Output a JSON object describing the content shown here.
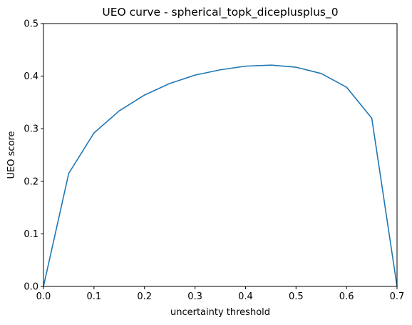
{
  "chart_data": {
    "type": "line",
    "title": "UEO curve - spherical_topk_diceplusplus_0",
    "xlabel": "uncertainty threshold",
    "ylabel": "UEO score",
    "xlim": [
      0.0,
      0.7
    ],
    "ylim": [
      0.0,
      0.5
    ],
    "grid": false,
    "xticks": [
      "0.0",
      "0.1",
      "0.2",
      "0.3",
      "0.4",
      "0.5",
      "0.6",
      "0.7"
    ],
    "yticks": [
      "0.0",
      "0.1",
      "0.2",
      "0.3",
      "0.4",
      "0.5"
    ],
    "series": [
      {
        "color": "#1f77b4",
        "x": [
          0.0,
          0.05,
          0.1,
          0.15,
          0.2,
          0.25,
          0.3,
          0.35,
          0.4,
          0.45,
          0.5,
          0.55,
          0.6,
          0.65,
          0.7
        ],
        "y": [
          0.0,
          0.215,
          0.292,
          0.334,
          0.364,
          0.386,
          0.402,
          0.412,
          0.419,
          0.421,
          0.417,
          0.405,
          0.379,
          0.32,
          0.0
        ]
      }
    ]
  }
}
